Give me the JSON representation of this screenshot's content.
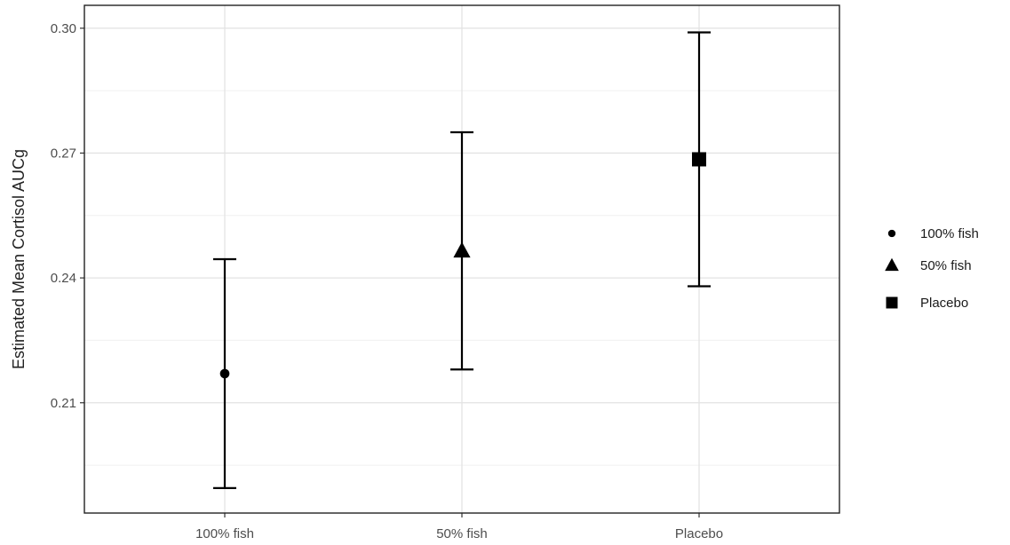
{
  "chart_data": {
    "type": "scatter",
    "title": "",
    "xlabel": "",
    "ylabel": "Estimated Mean Cortisol AUCg",
    "categories": [
      "100% fish",
      "50% fish",
      "Placebo"
    ],
    "ylim": [
      0.1835,
      0.3055
    ],
    "y_ticks": [
      0.21,
      0.24,
      0.27,
      0.3
    ],
    "y_tick_labels": [
      "0.21",
      "0.24",
      "0.27",
      "0.30"
    ],
    "grid": true,
    "legend_position": "right",
    "series": [
      {
        "name": "100% fish",
        "category": "100% fish",
        "shape": "circle",
        "value": 0.217,
        "lower": 0.1895,
        "upper": 0.2445
      },
      {
        "name": "50% fish",
        "category": "50% fish",
        "shape": "triangle",
        "value": 0.2465,
        "lower": 0.218,
        "upper": 0.275
      },
      {
        "name": "Placebo",
        "category": "Placebo",
        "shape": "square",
        "value": 0.2685,
        "lower": 0.238,
        "upper": 0.299
      }
    ],
    "legend": [
      {
        "label": "100% fish",
        "shape": "circle"
      },
      {
        "label": "50% fish",
        "shape": "triangle"
      },
      {
        "label": "Placebo",
        "shape": "square"
      }
    ],
    "colors": {
      "marker": "#000000",
      "grid": "#e3e3e3",
      "border": "#222222"
    }
  }
}
